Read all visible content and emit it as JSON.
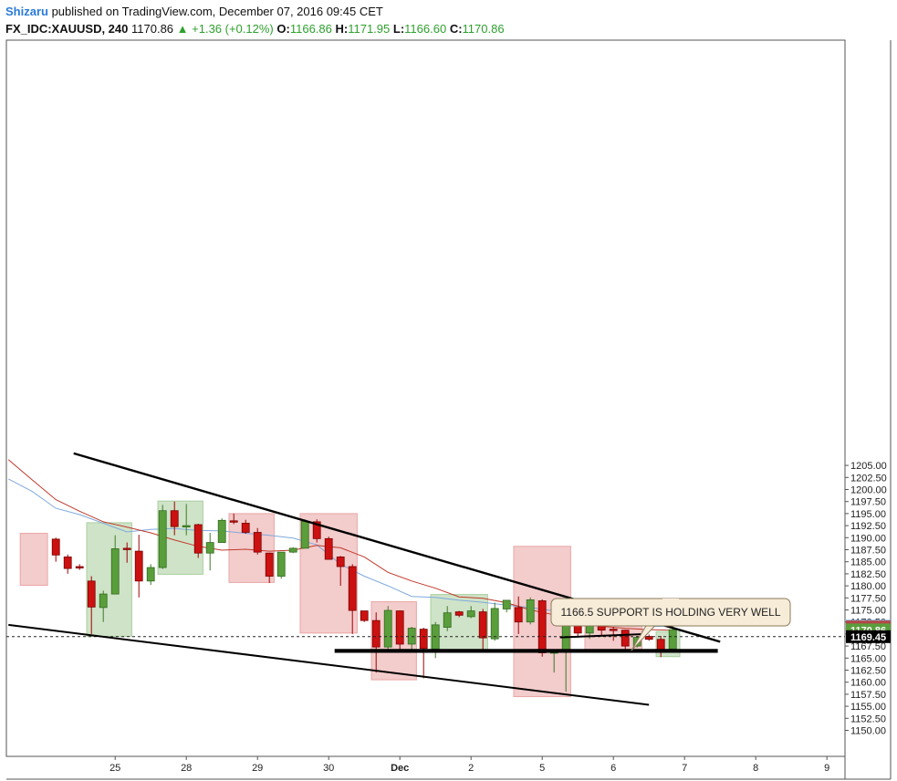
{
  "header": {
    "author": "Shizaru",
    "published": " published on TradingView.com, December 07, 2016 09:45 CET",
    "symbol": "FX_IDC:XAUUSD, 240",
    "last": "1170.86",
    "change": "▲ +1.36 (+0.12%)",
    "o_label": "O:",
    "o_value": "1166.86",
    "h_label": "H:",
    "h_value": "1171.95",
    "l_label": "L:",
    "l_value": "1166.60",
    "c_label": "C:",
    "c_value": "1170.86"
  },
  "colors": {
    "bull": "#5a9e3c",
    "bear": "#cc1111",
    "bull_zone": "#cfe3c8",
    "bear_zone": "#f3cccc",
    "ema_fast": "#7fa9dd",
    "ema_slow": "#c0392b",
    "annotation_bg": "#f7ecd8"
  },
  "chart_data": {
    "type": "candlestick",
    "ylim": [
      1147.5,
      1207.5
    ],
    "y_ticks": [
      "1150.00",
      "1152.50",
      "1155.00",
      "1157.50",
      "1160.00",
      "1162.50",
      "1165.00",
      "1167.50",
      "1170.00",
      "1172.50",
      "1175.00",
      "1177.50",
      "1180.00",
      "1182.50",
      "1185.00",
      "1187.50",
      "1190.00",
      "1192.50",
      "1195.00",
      "1197.50",
      "1200.00",
      "1202.50",
      "1205.00"
    ],
    "y_tick_values": [
      1150,
      1152.5,
      1155,
      1157.5,
      1160,
      1162.5,
      1165,
      1167.5,
      1170,
      1172.5,
      1175,
      1177.5,
      1180,
      1182.5,
      1185,
      1187.5,
      1190,
      1192.5,
      1195,
      1197.5,
      1200,
      1202.5,
      1205
    ],
    "x_ticks": [
      {
        "label": "25",
        "bar": 9,
        "bold": false
      },
      {
        "label": "28",
        "bar": 15,
        "bold": false
      },
      {
        "label": "29",
        "bar": 21,
        "bold": false
      },
      {
        "label": "30",
        "bar": 27,
        "bold": false
      },
      {
        "label": "Dec",
        "bar": 33,
        "bold": true
      },
      {
        "label": "2",
        "bar": 39,
        "bold": false
      },
      {
        "label": "5",
        "bar": 45,
        "bold": false
      },
      {
        "label": "6",
        "bar": 51,
        "bold": false
      },
      {
        "label": "7",
        "bar": 57,
        "bold": false
      },
      {
        "label": "8",
        "bar": 63,
        "bold": false
      },
      {
        "label": "9",
        "bar": 69,
        "bold": false
      }
    ],
    "candles": [
      {
        "i": 4,
        "o": 1189.7,
        "h": 1190.0,
        "l": 1185.0,
        "c": 1186.4
      },
      {
        "i": 5,
        "o": 1186.0,
        "h": 1186.5,
        "l": 1182.5,
        "c": 1183.6
      },
      {
        "i": 6,
        "o": 1184.0,
        "h": 1184.5,
        "l": 1183.3,
        "c": 1183.7
      },
      {
        "i": 7,
        "o": 1181.0,
        "h": 1182.0,
        "l": 1170.0,
        "c": 1175.6
      },
      {
        "i": 8,
        "o": 1175.5,
        "h": 1179.0,
        "l": 1172.5,
        "c": 1178.3
      },
      {
        "i": 9,
        "o": 1178.3,
        "h": 1190.5,
        "l": 1178.3,
        "c": 1187.7
      },
      {
        "i": 10,
        "o": 1187.8,
        "h": 1189.0,
        "l": 1184.8,
        "c": 1187.6
      },
      {
        "i": 11,
        "o": 1187.2,
        "h": 1190.6,
        "l": 1177.6,
        "c": 1181.0
      },
      {
        "i": 12,
        "o": 1181.0,
        "h": 1184.5,
        "l": 1180.2,
        "c": 1183.8
      },
      {
        "i": 13,
        "o": 1183.8,
        "h": 1196.8,
        "l": 1183.5,
        "c": 1195.6
      },
      {
        "i": 14,
        "o": 1195.6,
        "h": 1197.5,
        "l": 1190.5,
        "c": 1192.3
      },
      {
        "i": 15,
        "o": 1192.5,
        "h": 1197.0,
        "l": 1190.5,
        "c": 1192.5
      },
      {
        "i": 16,
        "o": 1192.7,
        "h": 1192.9,
        "l": 1185.8,
        "c": 1186.8
      },
      {
        "i": 17,
        "o": 1186.8,
        "h": 1191.0,
        "l": 1183.2,
        "c": 1189.0
      },
      {
        "i": 18,
        "o": 1189.0,
        "h": 1194.0,
        "l": 1189.0,
        "c": 1193.6
      },
      {
        "i": 19,
        "o": 1193.5,
        "h": 1195.0,
        "l": 1192.8,
        "c": 1193.3
      },
      {
        "i": 20,
        "o": 1193.0,
        "h": 1193.7,
        "l": 1190.8,
        "c": 1191.1
      },
      {
        "i": 21,
        "o": 1191.1,
        "h": 1192.0,
        "l": 1186.5,
        "c": 1187.0
      },
      {
        "i": 22,
        "o": 1186.8,
        "h": 1186.9,
        "l": 1180.6,
        "c": 1182.0
      },
      {
        "i": 23,
        "o": 1182.0,
        "h": 1187.0,
        "l": 1181.5,
        "c": 1187.0
      },
      {
        "i": 24,
        "o": 1187.0,
        "h": 1188.0,
        "l": 1186.8,
        "c": 1187.8
      },
      {
        "i": 25,
        "o": 1187.8,
        "h": 1193.8,
        "l": 1187.8,
        "c": 1193.4
      },
      {
        "i": 26,
        "o": 1193.3,
        "h": 1193.8,
        "l": 1189.0,
        "c": 1189.8
      },
      {
        "i": 27,
        "o": 1189.8,
        "h": 1190.2,
        "l": 1185.5,
        "c": 1185.5
      },
      {
        "i": 28,
        "o": 1186.0,
        "h": 1186.2,
        "l": 1180.0,
        "c": 1184.0
      },
      {
        "i": 29,
        "o": 1184.0,
        "h": 1184.5,
        "l": 1170.0,
        "c": 1174.9
      },
      {
        "i": 30,
        "o": 1174.8,
        "h": 1174.8,
        "l": 1172.5,
        "c": 1172.8
      },
      {
        "i": 31,
        "o": 1172.8,
        "h": 1174.5,
        "l": 1162.0,
        "c": 1167.3
      },
      {
        "i": 32,
        "o": 1167.3,
        "h": 1175.8,
        "l": 1166.8,
        "c": 1174.9
      },
      {
        "i": 33,
        "o": 1174.8,
        "h": 1174.9,
        "l": 1166.5,
        "c": 1167.9
      },
      {
        "i": 34,
        "o": 1167.9,
        "h": 1171.5,
        "l": 1166.5,
        "c": 1171.2
      },
      {
        "i": 35,
        "o": 1171.0,
        "h": 1171.3,
        "l": 1160.8,
        "c": 1167.0
      },
      {
        "i": 36,
        "o": 1166.9,
        "h": 1172.5,
        "l": 1165.0,
        "c": 1171.9
      },
      {
        "i": 37,
        "o": 1171.4,
        "h": 1175.8,
        "l": 1170.6,
        "c": 1174.4
      },
      {
        "i": 38,
        "o": 1174.6,
        "h": 1174.8,
        "l": 1173.5,
        "c": 1173.9
      },
      {
        "i": 39,
        "o": 1173.6,
        "h": 1175.8,
        "l": 1173.3,
        "c": 1174.8
      },
      {
        "i": 40,
        "o": 1174.6,
        "h": 1175.2,
        "l": 1166.6,
        "c": 1169.2
      },
      {
        "i": 41,
        "o": 1169.0,
        "h": 1176.5,
        "l": 1168.6,
        "c": 1175.3
      },
      {
        "i": 42,
        "o": 1175.2,
        "h": 1176.9,
        "l": 1174.5,
        "c": 1177.0
      },
      {
        "i": 43,
        "o": 1175.5,
        "h": 1177.8,
        "l": 1170.0,
        "c": 1172.5
      },
      {
        "i": 44,
        "o": 1172.5,
        "h": 1177.6,
        "l": 1172.0,
        "c": 1177.1
      },
      {
        "i": 45,
        "o": 1176.9,
        "h": 1177.2,
        "l": 1165.3,
        "c": 1166.1
      },
      {
        "i": 46,
        "o": 1166.1,
        "h": 1166.5,
        "l": 1162.0,
        "c": 1166.3
      },
      {
        "i": 47,
        "o": 1166.2,
        "h": 1174.6,
        "l": 1158.0,
        "c": 1174.0
      },
      {
        "i": 48,
        "o": 1174.0,
        "h": 1174.8,
        "l": 1169.6,
        "c": 1170.2
      },
      {
        "i": 49,
        "o": 1170.2,
        "h": 1175.0,
        "l": 1169.0,
        "c": 1175.0
      },
      {
        "i": 50,
        "o": 1175.0,
        "h": 1175.2,
        "l": 1169.5,
        "c": 1170.8
      },
      {
        "i": 51,
        "o": 1171.0,
        "h": 1171.5,
        "l": 1168.6,
        "c": 1170.8
      },
      {
        "i": 52,
        "o": 1170.8,
        "h": 1170.9,
        "l": 1166.6,
        "c": 1167.5
      },
      {
        "i": 53,
        "o": 1167.5,
        "h": 1169.6,
        "l": 1167.2,
        "c": 1169.3
      },
      {
        "i": 54,
        "o": 1169.5,
        "h": 1169.9,
        "l": 1168.6,
        "c": 1168.9
      },
      {
        "i": 55,
        "o": 1168.9,
        "h": 1169.6,
        "l": 1165.2,
        "c": 1166.6
      },
      {
        "i": 56,
        "o": 1166.9,
        "h": 1171.9,
        "l": 1166.6,
        "c": 1170.9
      }
    ],
    "zones": [
      {
        "from": 1.0,
        "to": 3.3,
        "low": 1180.1,
        "high": 1190.9,
        "kind": "bear"
      },
      {
        "from": 6.6,
        "to": 10.4,
        "low": 1169.5,
        "high": 1193.1,
        "kind": "bull"
      },
      {
        "from": 12.6,
        "to": 16.4,
        "low": 1182.4,
        "high": 1197.6,
        "kind": "bull"
      },
      {
        "from": 18.6,
        "to": 22.4,
        "low": 1180.7,
        "high": 1195.0,
        "kind": "bear"
      },
      {
        "from": 24.6,
        "to": 29.4,
        "low": 1170.2,
        "high": 1195.0,
        "kind": "bear"
      },
      {
        "from": 30.6,
        "to": 34.4,
        "low": 1160.5,
        "high": 1176.7,
        "kind": "bear"
      },
      {
        "from": 35.6,
        "to": 40.4,
        "low": 1166.6,
        "high": 1178.2,
        "kind": "bull"
      },
      {
        "from": 42.6,
        "to": 47.4,
        "low": 1157.0,
        "high": 1188.2,
        "kind": "bear"
      },
      {
        "from": 48.6,
        "to": 53.4,
        "low": 1166.6,
        "high": 1175.4,
        "kind": "bear"
      },
      {
        "from": 54.6,
        "to": 56.6,
        "low": 1165.3,
        "high": 1170.5,
        "kind": "bull"
      }
    ],
    "ema_fast": [
      [
        0.0,
        1202.2
      ],
      [
        2.0,
        1199.6
      ],
      [
        4.0,
        1196.1
      ],
      [
        6.0,
        1194.8
      ],
      [
        8.0,
        1193.0
      ],
      [
        10.0,
        1191.2
      ],
      [
        12.0,
        1191.7
      ],
      [
        14.0,
        1191.9
      ],
      [
        16.0,
        1191.5
      ],
      [
        18.0,
        1191.4
      ],
      [
        20.0,
        1190.9
      ],
      [
        22.0,
        1190.5
      ],
      [
        24.0,
        1189.9
      ],
      [
        26.0,
        1188.5
      ],
      [
        28.0,
        1184.5
      ],
      [
        30.0,
        1182.0
      ],
      [
        32.0,
        1180.0
      ],
      [
        34.0,
        1177.8
      ],
      [
        36.0,
        1177.6
      ],
      [
        38.0,
        1177.0
      ],
      [
        40.0,
        1176.6
      ],
      [
        42.0,
        1176.0
      ],
      [
        44.0,
        1175.5
      ],
      [
        46.0,
        1174.8
      ],
      [
        48.0,
        1174.5
      ],
      [
        50.0,
        1173.9
      ],
      [
        52.0,
        1172.6
      ],
      [
        54.0,
        1171.6
      ],
      [
        56.0,
        1171.6
      ]
    ],
    "ema_slow": [
      [
        0.0,
        1206.2
      ],
      [
        2.0,
        1202.0
      ],
      [
        4.0,
        1197.9
      ],
      [
        6.0,
        1195.5
      ],
      [
        8.0,
        1193.3
      ],
      [
        10.0,
        1192.2
      ],
      [
        12.0,
        1191.0
      ],
      [
        14.0,
        1189.5
      ],
      [
        16.0,
        1188.2
      ],
      [
        18.0,
        1187.4
      ],
      [
        20.0,
        1187.6
      ],
      [
        22.0,
        1187.2
      ],
      [
        24.0,
        1187.4
      ],
      [
        26.0,
        1188.4
      ],
      [
        28.0,
        1187.9
      ],
      [
        30.0,
        1186.0
      ],
      [
        32.0,
        1182.8
      ],
      [
        34.0,
        1181.0
      ],
      [
        36.0,
        1179.5
      ],
      [
        38.0,
        1177.7
      ],
      [
        40.0,
        1177.4
      ],
      [
        42.0,
        1176.5
      ],
      [
        44.0,
        1175.0
      ],
      [
        46.0,
        1174.0
      ],
      [
        48.0,
        1172.3
      ],
      [
        50.0,
        1171.6
      ],
      [
        52.0,
        1171.2
      ],
      [
        54.0,
        1170.9
      ],
      [
        56.0,
        1170.8
      ]
    ],
    "trendlines": [
      {
        "kind": "upper",
        "x1": 5.5,
        "y1": 1207.5,
        "x2": 60.0,
        "y2": 1168.4,
        "width": 2.4
      },
      {
        "kind": "lower",
        "x1": 0.0,
        "y1": 1171.9,
        "x2": 54.0,
        "y2": 1155.3,
        "width": 2.0
      },
      {
        "kind": "support",
        "x1": 27.5,
        "y1": 1166.5,
        "x2": 59.8,
        "y2": 1166.5,
        "width": 4.2
      },
      {
        "kind": "flag-top",
        "x1": 46.5,
        "y1": 1174.8,
        "x2": 52.0,
        "y2": 1175.1,
        "width": 2.0
      },
      {
        "kind": "flag-bottom",
        "x1": 46.5,
        "y1": 1169.3,
        "x2": 53.8,
        "y2": 1170.0,
        "width": 2.0
      }
    ],
    "dashed_level": 1169.45,
    "price_labels": [
      {
        "text": "1171.63",
        "value": 1171.63,
        "color": "#7fa9dd"
      },
      {
        "text": "1171.46",
        "value": 1171.46,
        "color": "#b64646"
      },
      {
        "text": "1170.86",
        "value": 1170.86,
        "color": "#5a9e3c"
      },
      {
        "text": "1169.45",
        "value": 1169.45,
        "color": "#000000"
      }
    ],
    "annotation": {
      "text": "1166.5 SUPPORT IS HOLDING VERY WELL",
      "anchor_bar": 52.5,
      "anchor_value": 1166.5
    }
  }
}
